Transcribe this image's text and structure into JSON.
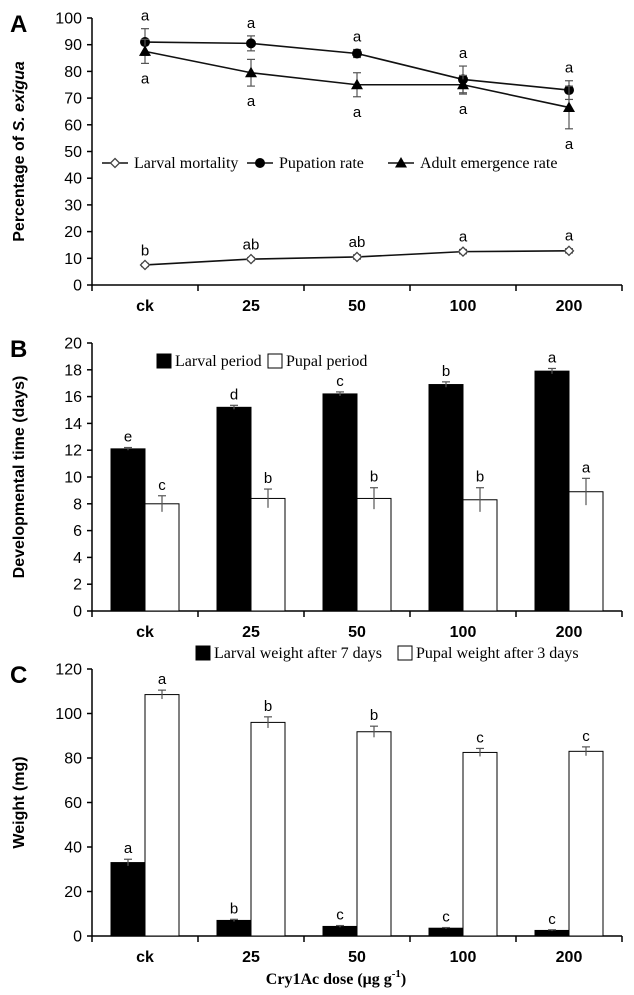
{
  "xlabel_main": "Cry1Ac dose (μg g",
  "xlabel_sup": "-1",
  "xlabel_close": ")",
  "chart_data": [
    {
      "panel": "A",
      "type": "line",
      "categories": [
        "ck",
        "25",
        "50",
        "100",
        "200"
      ],
      "ylabel_prefix": "Percentage of ",
      "ylabel_italic": "S. exigua",
      "ylim": [
        0,
        100
      ],
      "yticks": [
        0,
        10,
        20,
        30,
        40,
        50,
        60,
        70,
        80,
        90,
        100
      ],
      "legend_position": "middle",
      "series": [
        {
          "name": "Larval mortality",
          "marker": "diamond-open",
          "values": [
            7.5,
            9.7,
            10.5,
            12.5,
            12.8
          ],
          "errors": [
            0.6,
            0.6,
            0.8,
            0.8,
            0.8
          ],
          "letters": [
            "b",
            "ab",
            "ab",
            "a",
            "a"
          ],
          "letter_side": "above"
        },
        {
          "name": "Pupation rate",
          "marker": "circle-filled",
          "values": [
            91.0,
            90.5,
            86.7,
            77.0,
            73.0
          ],
          "errors": [
            5.0,
            2.8,
            1.5,
            5.0,
            3.5
          ],
          "letters": [
            "a",
            "a",
            "a",
            "a",
            "a"
          ],
          "letter_side": "above"
        },
        {
          "name": "Adult emergence rate",
          "marker": "triangle-filled",
          "values": [
            87.5,
            79.5,
            75.0,
            75.0,
            66.5
          ],
          "errors": [
            4.5,
            5.0,
            4.5,
            3.5,
            8.0
          ],
          "letters": [
            "a",
            "a",
            "a",
            "a",
            "a"
          ],
          "letter_side": "below"
        }
      ]
    },
    {
      "panel": "B",
      "type": "bar",
      "categories": [
        "ck",
        "25",
        "50",
        "100",
        "200"
      ],
      "ylabel": "Developmental time (days)",
      "ylim": [
        0,
        20
      ],
      "yticks": [
        0,
        2,
        4,
        6,
        8,
        10,
        12,
        14,
        16,
        18,
        20
      ],
      "legend_position": "top",
      "series": [
        {
          "name": "Larval period",
          "fill": "#000000",
          "values": [
            12.1,
            15.2,
            16.2,
            16.9,
            17.9
          ],
          "errors": [
            0.1,
            0.15,
            0.15,
            0.2,
            0.2
          ],
          "letters": [
            "e",
            "d",
            "c",
            "b",
            "a"
          ]
        },
        {
          "name": "Pupal period",
          "fill": "#ffffff",
          "values": [
            8.0,
            8.4,
            8.4,
            8.3,
            8.9
          ],
          "errors": [
            0.6,
            0.7,
            0.8,
            0.9,
            1.0
          ],
          "letters": [
            "c",
            "b",
            "b",
            "b",
            "a"
          ]
        }
      ]
    },
    {
      "panel": "C",
      "type": "bar",
      "categories": [
        "ck",
        "25",
        "50",
        "100",
        "200"
      ],
      "ylabel": "Weight (mg)",
      "ylim": [
        0,
        120
      ],
      "yticks": [
        0,
        20,
        40,
        60,
        80,
        100,
        120
      ],
      "legend_position": "top",
      "series": [
        {
          "name": "Larval weight after 7 days",
          "fill": "#000000",
          "values": [
            33.0,
            7.0,
            4.3,
            3.5,
            2.5
          ],
          "errors": [
            1.5,
            0.5,
            0.4,
            0.3,
            0.3
          ],
          "letters": [
            "a",
            "b",
            "c",
            "c",
            "c"
          ]
        },
        {
          "name": "Pupal weight after 3 days",
          "fill": "#ffffff",
          "values": [
            108.5,
            96.0,
            91.8,
            82.5,
            83.0
          ],
          "errors": [
            2.0,
            2.5,
            2.5,
            1.8,
            2.0
          ],
          "letters": [
            "a",
            "b",
            "b",
            "c",
            "c"
          ]
        }
      ]
    }
  ]
}
